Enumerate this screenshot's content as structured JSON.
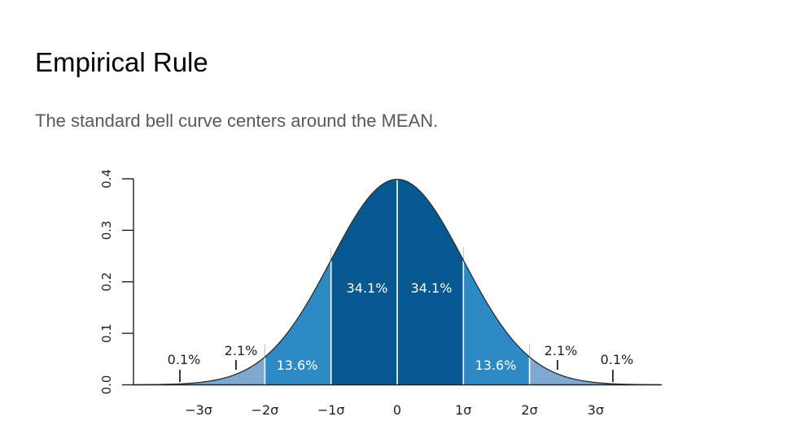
{
  "slide": {
    "title": "Empirical Rule",
    "subtitle": "The standard bell curve centers around the MEAN."
  },
  "chart_data": {
    "type": "area",
    "distribution": "standard normal",
    "x_ticks": [
      "−3σ",
      "−2σ",
      "−1σ",
      "0",
      "1σ",
      "2σ",
      "3σ"
    ],
    "x_tick_values": [
      -3,
      -2,
      -1,
      0,
      1,
      2,
      3
    ],
    "y_ticks": [
      "0.0",
      "0.1",
      "0.2",
      "0.3",
      "0.4"
    ],
    "y_tick_values": [
      0.0,
      0.1,
      0.2,
      0.3,
      0.4
    ],
    "xlim": [
      -4,
      4
    ],
    "ylim": [
      0,
      0.4
    ],
    "grid": false,
    "regions": [
      {
        "from": -4,
        "to": -3,
        "label": "0.1%",
        "color": "#7ea9d1"
      },
      {
        "from": -3,
        "to": -2,
        "label": "2.1%",
        "color": "#7ea9d1"
      },
      {
        "from": -2,
        "to": -1,
        "label": "13.6%",
        "color": "#2e8ac4"
      },
      {
        "from": -1,
        "to": 0,
        "label": "34.1%",
        "color": "#075890"
      },
      {
        "from": 0,
        "to": 1,
        "label": "34.1%",
        "color": "#075890"
      },
      {
        "from": 1,
        "to": 2,
        "label": "13.6%",
        "color": "#2e8ac4"
      },
      {
        "from": 2,
        "to": 3,
        "label": "2.1%",
        "color": "#7ea9d1"
      },
      {
        "from": 3,
        "to": 4,
        "label": "0.1%",
        "color": "#7ea9d1"
      }
    ]
  }
}
